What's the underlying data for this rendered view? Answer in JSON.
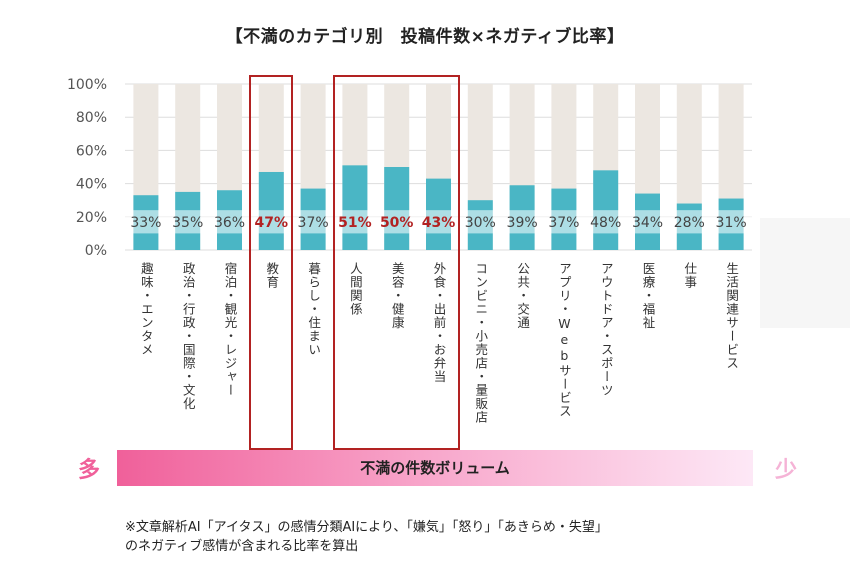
{
  "chart_data": {
    "type": "bar",
    "title": "【不満のカテゴリ別　投稿件数×ネガティブ比率】",
    "y_ticks": [
      "0%",
      "20%",
      "40%",
      "60%",
      "80%",
      "100%"
    ],
    "ylim": [
      0,
      100
    ],
    "categories": [
      "趣味・エンタメ",
      "政治・行政・国際・文化",
      "宿泊・観光・レジャー",
      "教育",
      "暮らし・住まい",
      "人間関係",
      "美容・健康",
      "外食・出前・お弁当",
      "コンビニ・小売店・量販店",
      "公共・交通",
      "アプリ・Webサービス",
      "アウトドア・スポーツ",
      "医療・福祉",
      "仕事",
      "生活関連サービス"
    ],
    "values": [
      33,
      35,
      36,
      47,
      37,
      51,
      50,
      43,
      30,
      39,
      37,
      48,
      34,
      28,
      31
    ],
    "labels": [
      "33%",
      "35%",
      "36%",
      "47%",
      "37%",
      "51%",
      "50%",
      "43%",
      "30%",
      "39%",
      "37%",
      "48%",
      "34%",
      "28%",
      "31%"
    ],
    "highlighted": [
      false,
      false,
      false,
      true,
      false,
      true,
      true,
      true,
      false,
      false,
      false,
      false,
      false,
      false,
      false
    ],
    "colors": {
      "bar": "#4ab6c5",
      "background_bar": "#ece7e1",
      "highlight_text": "#b22222",
      "grid": "#dddddd"
    }
  },
  "volume": {
    "label": "不満の件数ボリューム",
    "more": "多",
    "less": "少"
  },
  "footnote": {
    "line1": "※文章解析AI「アイタス」の感情分類AIにより、「嫌気」「怒り」「あきらめ・失望」",
    "line2": "のネガティブ感情が含まれる比率を算出"
  }
}
